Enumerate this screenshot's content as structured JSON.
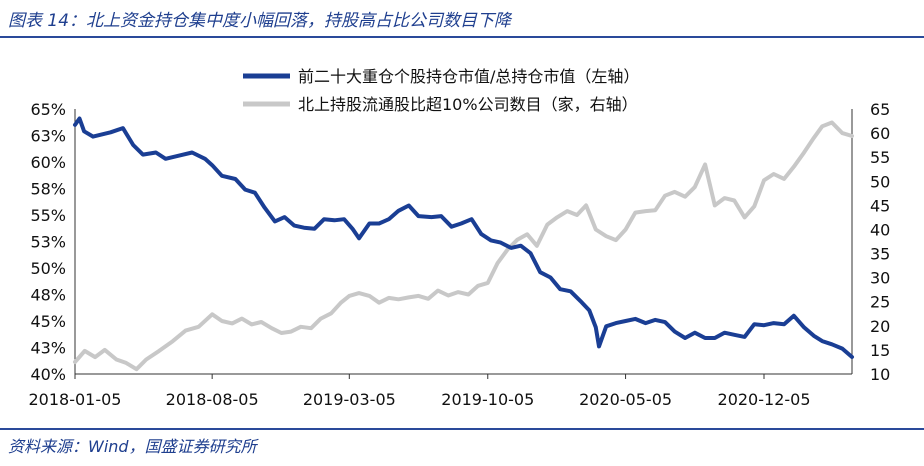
{
  "title": "图表 14：北上资金持仓集中度小幅回落，持股高占比公司数目下降",
  "source": "资料来源：Wind，国盛证券研究所",
  "colors": {
    "accent": "#1f3f8f",
    "series1": "#1a3e94",
    "series2": "#c8c8c8"
  },
  "chart_data": {
    "type": "line",
    "grid": false,
    "legend_position": "top-center",
    "x_ticks": [
      "2018-01-05",
      "2018-08-05",
      "2019-03-05",
      "2019-10-05",
      "2020-05-05",
      "2020-12-05"
    ],
    "x_range": [
      "2018-01-05",
      "2021-04-20"
    ],
    "y_left": {
      "ticks": [
        "40%",
        "43%",
        "45%",
        "48%",
        "50%",
        "53%",
        "55%",
        "58%",
        "60%",
        "63%",
        "65%"
      ],
      "range": [
        40,
        65
      ]
    },
    "y_right": {
      "ticks": [
        "10",
        "15",
        "20",
        "25",
        "30",
        "35",
        "40",
        "45",
        "50",
        "55",
        "60",
        "65"
      ],
      "range": [
        10,
        65
      ]
    },
    "series": [
      {
        "name": "前二十大重仓个股持仓市值/总持仓市值（左轴）",
        "axis": "left",
        "points": [
          [
            "2018-01-05",
            63.5
          ],
          [
            "2018-01-12",
            64.1
          ],
          [
            "2018-01-19",
            62.9
          ],
          [
            "2018-02-02",
            62.4
          ],
          [
            "2018-03-01",
            62.8
          ],
          [
            "2018-03-20",
            63.2
          ],
          [
            "2018-04-05",
            61.6
          ],
          [
            "2018-04-20",
            60.7
          ],
          [
            "2018-05-10",
            60.9
          ],
          [
            "2018-05-25",
            60.3
          ],
          [
            "2018-06-15",
            60.6
          ],
          [
            "2018-07-05",
            60.9
          ],
          [
            "2018-07-25",
            60.3
          ],
          [
            "2018-08-05",
            59.7
          ],
          [
            "2018-08-20",
            58.7
          ],
          [
            "2018-09-10",
            58.4
          ],
          [
            "2018-09-25",
            57.4
          ],
          [
            "2018-10-10",
            57.1
          ],
          [
            "2018-10-25",
            55.7
          ],
          [
            "2018-11-10",
            54.4
          ],
          [
            "2018-11-25",
            54.8
          ],
          [
            "2018-12-10",
            54.0
          ],
          [
            "2018-12-25",
            53.8
          ],
          [
            "2019-01-10",
            53.7
          ],
          [
            "2019-01-25",
            54.6
          ],
          [
            "2019-02-10",
            54.5
          ],
          [
            "2019-02-25",
            54.6
          ],
          [
            "2019-03-10",
            53.7
          ],
          [
            "2019-03-20",
            52.8
          ],
          [
            "2019-04-05",
            54.2
          ],
          [
            "2019-04-20",
            54.2
          ],
          [
            "2019-05-05",
            54.6
          ],
          [
            "2019-05-20",
            55.4
          ],
          [
            "2019-06-05",
            55.9
          ],
          [
            "2019-06-20",
            54.9
          ],
          [
            "2019-07-10",
            54.8
          ],
          [
            "2019-07-25",
            54.9
          ],
          [
            "2019-08-10",
            53.9
          ],
          [
            "2019-08-25",
            54.2
          ],
          [
            "2019-09-10",
            54.6
          ],
          [
            "2019-09-25",
            53.2
          ],
          [
            "2019-10-10",
            52.6
          ],
          [
            "2019-10-25",
            52.4
          ],
          [
            "2019-11-10",
            51.9
          ],
          [
            "2019-11-25",
            52.1
          ],
          [
            "2019-12-10",
            51.4
          ],
          [
            "2019-12-25",
            49.6
          ],
          [
            "2020-01-10",
            49.1
          ],
          [
            "2020-01-25",
            48.0
          ],
          [
            "2020-02-10",
            47.8
          ],
          [
            "2020-02-25",
            46.9
          ],
          [
            "2020-03-10",
            46.0
          ],
          [
            "2020-03-20",
            44.4
          ],
          [
            "2020-03-25",
            42.6
          ],
          [
            "2020-04-05",
            44.5
          ],
          [
            "2020-04-20",
            44.8
          ],
          [
            "2020-05-05",
            45.0
          ],
          [
            "2020-05-20",
            45.2
          ],
          [
            "2020-06-05",
            44.8
          ],
          [
            "2020-06-20",
            45.1
          ],
          [
            "2020-07-05",
            44.9
          ],
          [
            "2020-07-20",
            44.0
          ],
          [
            "2020-08-05",
            43.4
          ],
          [
            "2020-08-20",
            43.9
          ],
          [
            "2020-09-05",
            43.4
          ],
          [
            "2020-09-20",
            43.4
          ],
          [
            "2020-10-05",
            43.9
          ],
          [
            "2020-10-20",
            43.7
          ],
          [
            "2020-11-05",
            43.5
          ],
          [
            "2020-11-20",
            44.7
          ],
          [
            "2020-12-05",
            44.6
          ],
          [
            "2020-12-20",
            44.8
          ],
          [
            "2021-01-05",
            44.7
          ],
          [
            "2021-01-20",
            45.5
          ],
          [
            "2021-02-05",
            44.4
          ],
          [
            "2021-02-20",
            43.6
          ],
          [
            "2021-03-05",
            43.1
          ],
          [
            "2021-03-20",
            42.8
          ],
          [
            "2021-04-05",
            42.4
          ],
          [
            "2021-04-20",
            41.6
          ]
        ]
      },
      {
        "name": "北上持股流通股比超10%公司数目（家，右轴）",
        "axis": "right",
        "points": [
          [
            "2018-01-05",
            12.5
          ],
          [
            "2018-01-20",
            14.8
          ],
          [
            "2018-02-05",
            13.5
          ],
          [
            "2018-02-20",
            15.0
          ],
          [
            "2018-03-10",
            13.0
          ],
          [
            "2018-03-25",
            12.3
          ],
          [
            "2018-04-10",
            11.0
          ],
          [
            "2018-04-25",
            13.0
          ],
          [
            "2018-05-15",
            14.8
          ],
          [
            "2018-06-05",
            16.8
          ],
          [
            "2018-06-25",
            19.0
          ],
          [
            "2018-07-15",
            19.8
          ],
          [
            "2018-08-05",
            22.4
          ],
          [
            "2018-08-20",
            21.0
          ],
          [
            "2018-09-05",
            20.5
          ],
          [
            "2018-09-20",
            21.5
          ],
          [
            "2018-10-05",
            20.3
          ],
          [
            "2018-10-20",
            20.8
          ],
          [
            "2018-11-05",
            19.5
          ],
          [
            "2018-11-20",
            18.5
          ],
          [
            "2018-12-05",
            18.8
          ],
          [
            "2018-12-20",
            19.8
          ],
          [
            "2019-01-05",
            19.5
          ],
          [
            "2019-01-20",
            21.5
          ],
          [
            "2019-02-05",
            22.6
          ],
          [
            "2019-02-20",
            24.8
          ],
          [
            "2019-03-05",
            26.2
          ],
          [
            "2019-03-20",
            26.8
          ],
          [
            "2019-04-05",
            26.2
          ],
          [
            "2019-04-20",
            24.8
          ],
          [
            "2019-05-05",
            25.8
          ],
          [
            "2019-05-20",
            25.5
          ],
          [
            "2019-06-05",
            25.9
          ],
          [
            "2019-06-20",
            26.2
          ],
          [
            "2019-07-05",
            25.6
          ],
          [
            "2019-07-20",
            27.3
          ],
          [
            "2019-08-05",
            26.3
          ],
          [
            "2019-08-20",
            27.0
          ],
          [
            "2019-09-05",
            26.5
          ],
          [
            "2019-09-20",
            28.3
          ],
          [
            "2019-10-05",
            28.9
          ],
          [
            "2019-10-20",
            33.0
          ],
          [
            "2019-11-05",
            35.9
          ],
          [
            "2019-11-20",
            37.9
          ],
          [
            "2019-12-05",
            39.0
          ],
          [
            "2019-12-20",
            36.6
          ],
          [
            "2020-01-05",
            41.0
          ],
          [
            "2020-01-20",
            42.5
          ],
          [
            "2020-02-05",
            43.8
          ],
          [
            "2020-02-20",
            43.0
          ],
          [
            "2020-03-05",
            45.0
          ],
          [
            "2020-03-20",
            40.0
          ],
          [
            "2020-04-05",
            38.6
          ],
          [
            "2020-04-20",
            37.8
          ],
          [
            "2020-05-05",
            40.0
          ],
          [
            "2020-05-20",
            43.5
          ],
          [
            "2020-06-05",
            43.8
          ],
          [
            "2020-06-20",
            44.0
          ],
          [
            "2020-07-05",
            47.0
          ],
          [
            "2020-07-20",
            47.8
          ],
          [
            "2020-08-05",
            46.8
          ],
          [
            "2020-08-20",
            48.8
          ],
          [
            "2020-09-05",
            53.5
          ],
          [
            "2020-09-20",
            45.0
          ],
          [
            "2020-10-05",
            46.5
          ],
          [
            "2020-10-20",
            46.0
          ],
          [
            "2020-11-05",
            42.5
          ],
          [
            "2020-11-20",
            44.8
          ],
          [
            "2020-12-05",
            50.2
          ],
          [
            "2020-12-20",
            51.5
          ],
          [
            "2021-01-05",
            50.5
          ],
          [
            "2021-01-20",
            53.0
          ],
          [
            "2021-02-05",
            56.0
          ],
          [
            "2021-02-20",
            59.0
          ],
          [
            "2021-03-05",
            61.4
          ],
          [
            "2021-03-20",
            62.2
          ],
          [
            "2021-04-05",
            60.0
          ],
          [
            "2021-04-20",
            59.4
          ]
        ]
      }
    ]
  }
}
